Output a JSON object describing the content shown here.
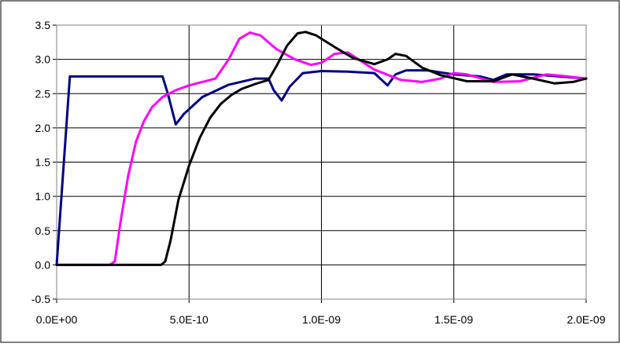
{
  "chart_data": {
    "type": "line",
    "title": "",
    "xlabel": "",
    "ylabel": "",
    "xlim": [
      0,
      2e-09
    ],
    "ylim": [
      -0.5,
      3.5
    ],
    "grid": true,
    "legend": "none",
    "x_ticks": [
      {
        "value": 0,
        "label": "0.0E+00"
      },
      {
        "value": 5e-10,
        "label": "5.0E-10"
      },
      {
        "value": 1e-09,
        "label": "1.0E-09"
      },
      {
        "value": 1.5e-09,
        "label": "1.5E-09"
      },
      {
        "value": 2e-09,
        "label": "2.0E-09"
      }
    ],
    "y_ticks": [
      {
        "value": -0.5,
        "label": "-0.5"
      },
      {
        "value": 0.0,
        "label": "0.0"
      },
      {
        "value": 0.5,
        "label": "0.5"
      },
      {
        "value": 1.0,
        "label": "1.0"
      },
      {
        "value": 1.5,
        "label": "1.5"
      },
      {
        "value": 2.0,
        "label": "2.0"
      },
      {
        "value": 2.5,
        "label": "2.5"
      },
      {
        "value": 3.0,
        "label": "3.0"
      },
      {
        "value": 3.5,
        "label": "3.5"
      }
    ],
    "series": [
      {
        "color": "#000080",
        "points": [
          [
            0,
            0
          ],
          [
            5e-11,
            2.75
          ],
          [
            4e-10,
            2.75
          ],
          [
            4.2e-10,
            2.5
          ],
          [
            4.5e-10,
            2.05
          ],
          [
            4.8e-10,
            2.2
          ],
          [
            5.5e-10,
            2.45
          ],
          [
            6.5e-10,
            2.63
          ],
          [
            7.5e-10,
            2.72
          ],
          [
            8e-10,
            2.72
          ],
          [
            8.2e-10,
            2.55
          ],
          [
            8.5e-10,
            2.4
          ],
          [
            8.8e-10,
            2.6
          ],
          [
            9.3e-10,
            2.8
          ],
          [
            1e-09,
            2.83
          ],
          [
            1.1e-09,
            2.82
          ],
          [
            1.2e-09,
            2.8
          ],
          [
            1.25e-09,
            2.62
          ],
          [
            1.28e-09,
            2.78
          ],
          [
            1.32e-09,
            2.84
          ],
          [
            1.4e-09,
            2.84
          ],
          [
            1.5e-09,
            2.78
          ],
          [
            1.6e-09,
            2.75
          ],
          [
            1.65e-09,
            2.7
          ],
          [
            1.7e-09,
            2.78
          ],
          [
            1.8e-09,
            2.78
          ],
          [
            1.9e-09,
            2.75
          ],
          [
            2e-09,
            2.72
          ]
        ]
      },
      {
        "color": "#ff00ff",
        "points": [
          [
            0,
            0
          ],
          [
            2e-10,
            0
          ],
          [
            2.2e-10,
            0.05
          ],
          [
            2.4e-10,
            0.6
          ],
          [
            2.7e-10,
            1.3
          ],
          [
            3e-10,
            1.8
          ],
          [
            3.3e-10,
            2.1
          ],
          [
            3.6e-10,
            2.3
          ],
          [
            4e-10,
            2.45
          ],
          [
            4.5e-10,
            2.55
          ],
          [
            5e-10,
            2.62
          ],
          [
            5.5e-10,
            2.67
          ],
          [
            6e-10,
            2.72
          ],
          [
            6.5e-10,
            3.0
          ],
          [
            6.9e-10,
            3.3
          ],
          [
            7.3e-10,
            3.39
          ],
          [
            7.7e-10,
            3.35
          ],
          [
            8.3e-10,
            3.15
          ],
          [
            9e-10,
            3.0
          ],
          [
            9.6e-10,
            2.92
          ],
          [
            1e-09,
            2.95
          ],
          [
            1.05e-09,
            3.08
          ],
          [
            1.1e-09,
            3.1
          ],
          [
            1.2e-09,
            2.85
          ],
          [
            1.3e-09,
            2.7
          ],
          [
            1.38e-09,
            2.67
          ],
          [
            1.45e-09,
            2.72
          ],
          [
            1.5e-09,
            2.8
          ],
          [
            1.55e-09,
            2.78
          ],
          [
            1.65e-09,
            2.67
          ],
          [
            1.75e-09,
            2.68
          ],
          [
            1.85e-09,
            2.78
          ],
          [
            1.93e-09,
            2.75
          ],
          [
            2e-09,
            2.72
          ]
        ]
      },
      {
        "color": "#000000",
        "points": [
          [
            0,
            0
          ],
          [
            3.95e-10,
            0
          ],
          [
            4.1e-10,
            0.05
          ],
          [
            4.3e-10,
            0.35
          ],
          [
            4.6e-10,
            0.95
          ],
          [
            5e-10,
            1.45
          ],
          [
            5.4e-10,
            1.85
          ],
          [
            5.8e-10,
            2.15
          ],
          [
            6.2e-10,
            2.35
          ],
          [
            6.6e-10,
            2.48
          ],
          [
            7e-10,
            2.57
          ],
          [
            7.5e-10,
            2.64
          ],
          [
            8e-10,
            2.7
          ],
          [
            8.3e-10,
            2.9
          ],
          [
            8.7e-10,
            3.2
          ],
          [
            9.1e-10,
            3.38
          ],
          [
            9.4e-10,
            3.4
          ],
          [
            9.8e-10,
            3.35
          ],
          [
            1.05e-09,
            3.18
          ],
          [
            1.12e-09,
            3.02
          ],
          [
            1.2e-09,
            2.93
          ],
          [
            1.25e-09,
            3.0
          ],
          [
            1.28e-09,
            3.08
          ],
          [
            1.32e-09,
            3.05
          ],
          [
            1.38e-09,
            2.88
          ],
          [
            1.45e-09,
            2.77
          ],
          [
            1.55e-09,
            2.68
          ],
          [
            1.65e-09,
            2.68
          ],
          [
            1.72e-09,
            2.78
          ],
          [
            1.8e-09,
            2.72
          ],
          [
            1.88e-09,
            2.65
          ],
          [
            1.95e-09,
            2.67
          ],
          [
            2e-09,
            2.72
          ]
        ]
      }
    ]
  }
}
